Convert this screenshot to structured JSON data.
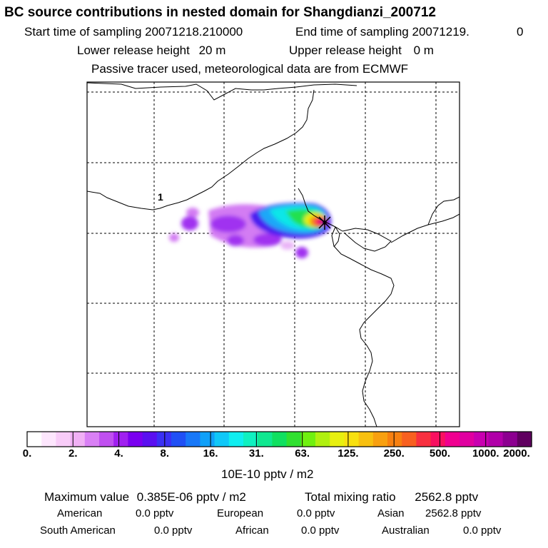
{
  "header": {
    "title": "BC  source contributions in nested domain for Shangdianzi_200712",
    "start_label": "Start time of sampling",
    "start_value": "20071218.210000",
    "end_label": "End time of sampling",
    "end_value": "20071219.",
    "end_suffix": "0",
    "lower_label": "Lower release height",
    "lower_value": "20 m",
    "upper_label": "Upper release height",
    "upper_value": "0 m",
    "note": "Passive tracer used, meteorological data are from ECMWF"
  },
  "map": {
    "contour_label": "1",
    "source_marker": "receptor-cross"
  },
  "colorbar": {
    "ticks": [
      "0.",
      "2.",
      "4.",
      "8.",
      "16.",
      "31.",
      "63.",
      "125.",
      "250.",
      "500.",
      "1000.",
      "2000."
    ],
    "units": "10E-10 pptv / m2",
    "colors": [
      "#ffffff",
      "#fde6fd",
      "#f8ccf8",
      "#f0b0f5",
      "#d980f5",
      "#c050f0",
      "#a020f0",
      "#7a00f0",
      "#5a10f0",
      "#3a30f5",
      "#2050f5",
      "#1878f8",
      "#10a0f8",
      "#10c8f8",
      "#10eef0",
      "#10f0c0",
      "#10e890",
      "#10e060",
      "#30e030",
      "#70f010",
      "#b0f010",
      "#e8f010",
      "#f8e010",
      "#f8c010",
      "#f8a010",
      "#f88010",
      "#f86020",
      "#f83040",
      "#f81060",
      "#f00090",
      "#e000a0",
      "#c800b0",
      "#b000a8",
      "#8c0090",
      "#600060"
    ]
  },
  "stats": {
    "max_label": "Maximum value",
    "max_value": "0.385E-06 pptv / m2",
    "total_label": "Total mixing ratio",
    "total_value": "2562.8 pptv",
    "regions": [
      {
        "name": "American",
        "value": "0.0 pptv"
      },
      {
        "name": "European",
        "value": "0.0 pptv"
      },
      {
        "name": "Asian",
        "value": "2562.8 pptv"
      },
      {
        "name": "South American",
        "value": "0.0 pptv"
      },
      {
        "name": "African",
        "value": "0.0 pptv"
      },
      {
        "name": "Australian",
        "value": "0.0 pptv"
      }
    ]
  }
}
